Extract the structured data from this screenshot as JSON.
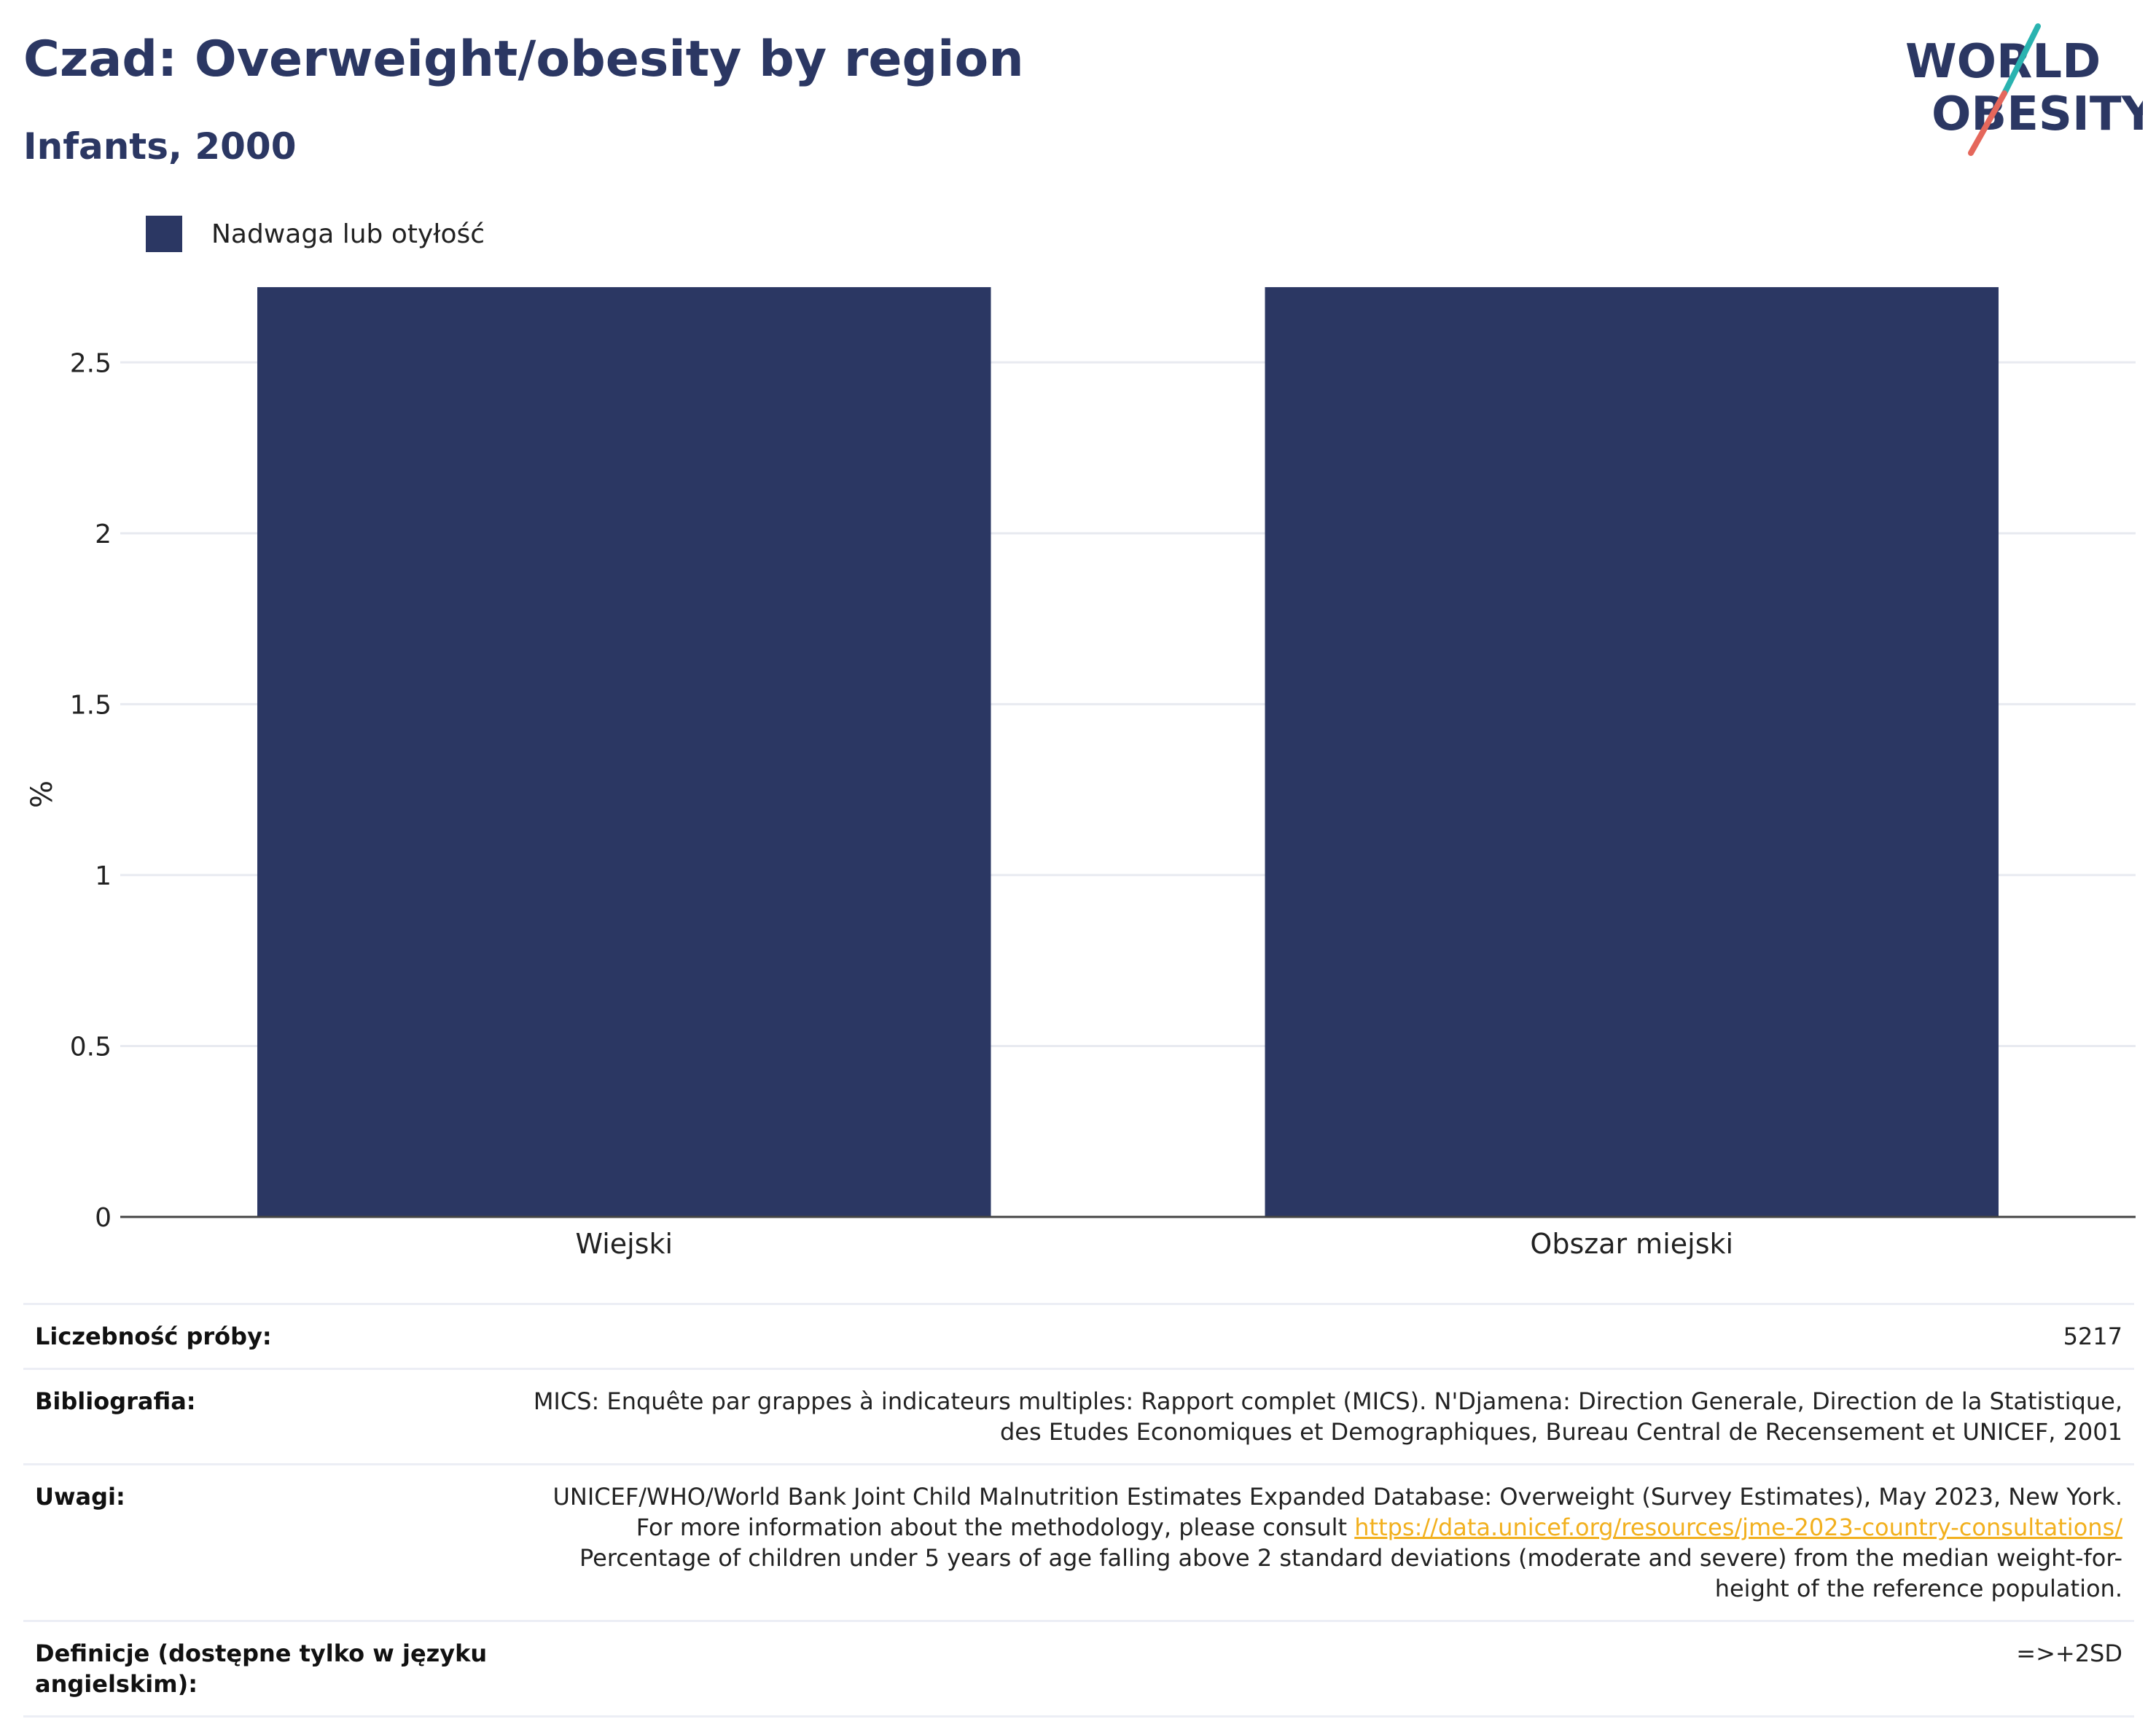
{
  "header": {
    "title": "Czad: Overweight/obesity by region",
    "subtitle": "Infants, 2000"
  },
  "logo": {
    "line1": "WORLD",
    "line2": "OBESITY",
    "icon": "world-obesity-logo"
  },
  "colors": {
    "bar": "#2b3763",
    "title": "#2b3763",
    "link": "#f2b01e"
  },
  "chart_data": {
    "type": "bar",
    "categories": [
      "Wiejski",
      "Obszar miejski"
    ],
    "series": [
      {
        "name": "Nadwaga lub otyłość",
        "values": [
          2.72,
          2.72
        ]
      }
    ],
    "ylabel": "%",
    "ylim": [
      0,
      2.75
    ],
    "yticks": [
      0,
      0.5,
      1,
      1.5,
      2,
      2.5
    ],
    "ytick_labels": [
      "0",
      "0.5",
      "1",
      "1.5",
      "2",
      "2.5"
    ],
    "grid": true,
    "legend": "top-left"
  },
  "info": {
    "sample_label": "Liczebność próby:",
    "sample_value": "5217",
    "bibliography_label": "Bibliografia:",
    "bibliography_value": "MICS: Enquête par grappes à indicateurs multiples: Rapport complet (MICS). N'Djamena: Direction Generale, Direction de la Statistique, des Etudes Economiques et Demographiques, Bureau Central de Recensement et UNICEF, 2001",
    "notes_label": "Uwagi:",
    "notes_before": "UNICEF/WHO/World Bank Joint Child Malnutrition Estimates Expanded Database: Overweight (Survey Estimates), May 2023, New York. For more information about the methodology, please consult",
    "notes_link": "https://data.unicef.org/resources/jme-2023-country-consultations/",
    "notes_after": "Percentage of children under 5 years of age falling above 2 standard deviations (moderate and severe) from the median weight-for-height of the reference population.",
    "definitions_label": "Definicje (dostępne tylko w języku angielskim):",
    "definitions_value": "=>+2SD"
  }
}
